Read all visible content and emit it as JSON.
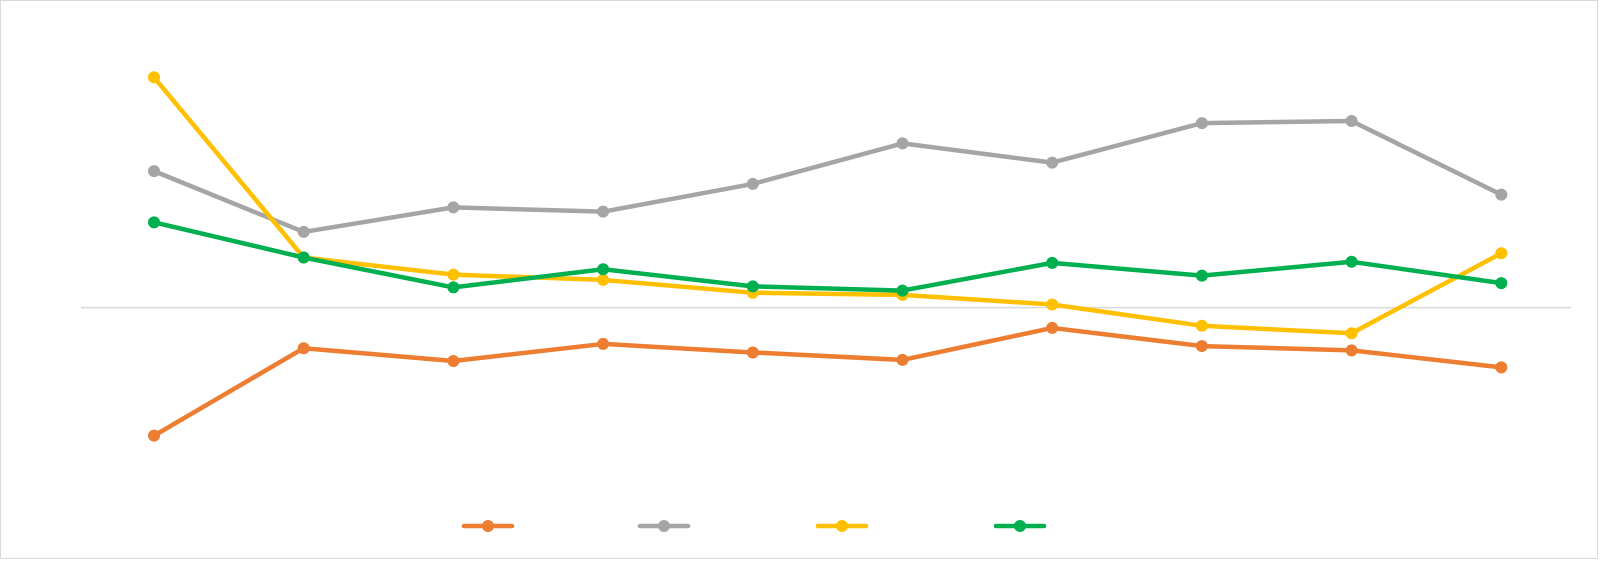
{
  "chart_data": {
    "type": "line",
    "title": "",
    "xlabel": "",
    "ylabel": "",
    "categories": [
      "",
      "",
      "",
      "",
      "",
      "",
      "",
      "",
      "",
      ""
    ],
    "ylim": [
      -2.0,
      2.5
    ],
    "zero_line": true,
    "grid": false,
    "legend": "bottom",
    "series": [
      {
        "name": "",
        "color": "#ED7D31",
        "values": [
          -1.2,
          -0.38,
          -0.5,
          -0.34,
          -0.42,
          -0.49,
          -0.19,
          -0.36,
          -0.4,
          -0.56
        ]
      },
      {
        "name": "",
        "color": "#A5A5A5",
        "values": [
          1.28,
          0.71,
          0.94,
          0.9,
          1.16,
          1.54,
          1.36,
          1.73,
          1.75,
          1.06
        ]
      },
      {
        "name": "",
        "color": "#FFC000",
        "values": [
          2.16,
          0.47,
          0.31,
          0.26,
          0.14,
          0.12,
          0.03,
          -0.17,
          -0.24,
          0.51
        ]
      },
      {
        "name": "",
        "color": "#00B050",
        "values": [
          0.8,
          0.47,
          0.19,
          0.36,
          0.2,
          0.16,
          0.42,
          0.3,
          0.43,
          0.23
        ]
      }
    ]
  },
  "colors": {
    "zero_line": "#d9d9d9",
    "border": "#d9d9d9"
  }
}
